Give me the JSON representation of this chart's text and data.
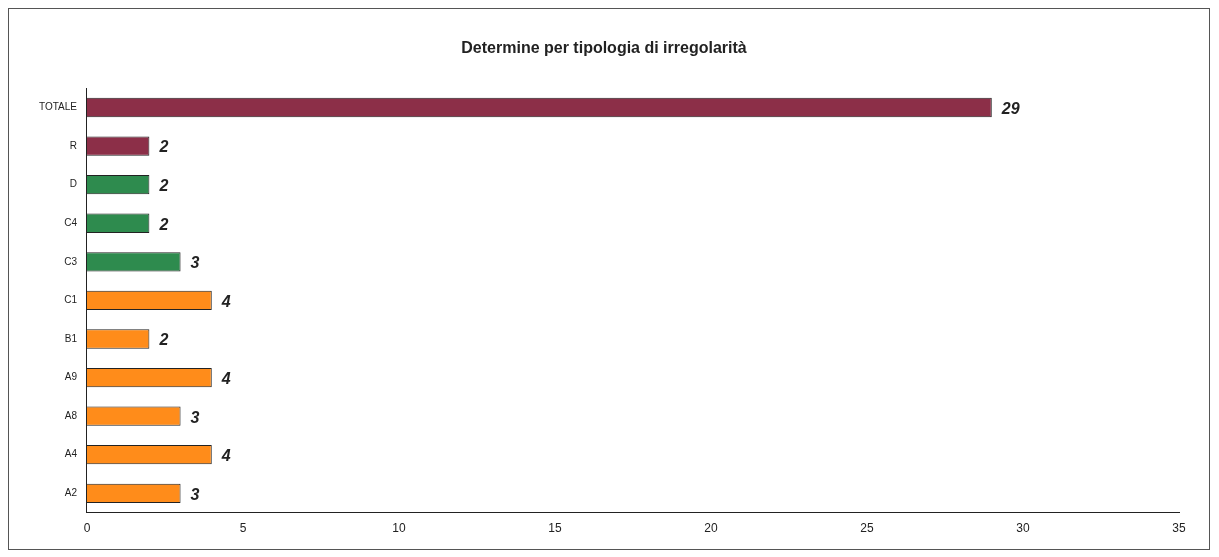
{
  "chart_data": {
    "type": "bar",
    "orientation": "horizontal",
    "title": "Determine per tipologia di irregolarità",
    "categories": [
      "TOTALE",
      "R",
      "D",
      "C4",
      "C3",
      "C1",
      "B1",
      "A9",
      "A8",
      "A4",
      "A2"
    ],
    "values": [
      29,
      2,
      2,
      2,
      3,
      4,
      2,
      4,
      3,
      4,
      3
    ],
    "colors": [
      "#8c2f48",
      "#8c2f48",
      "#2e8b4e",
      "#2e8b4e",
      "#2e8b4e",
      "#ff8c1a",
      "#ff8c1a",
      "#ff8c1a",
      "#ff8c1a",
      "#ff8c1a",
      "#ff8c1a"
    ],
    "xlim": [
      0,
      35
    ],
    "xticks": [
      0,
      5,
      10,
      15,
      20,
      25,
      30,
      35
    ],
    "data_labels": true,
    "grid": false,
    "legend": false
  }
}
